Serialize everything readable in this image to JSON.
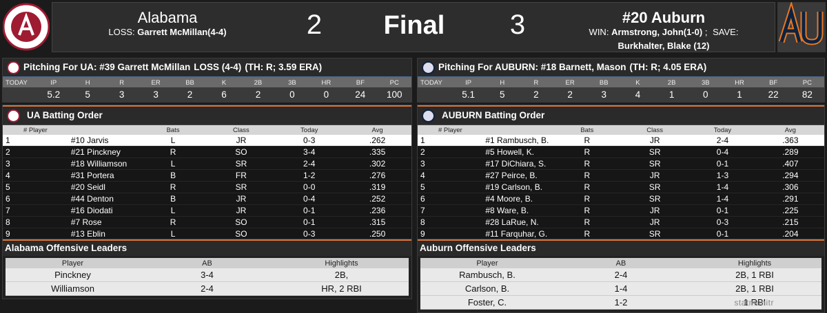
{
  "header": {
    "home_team": "Alabama",
    "loss_label": "LOSS:",
    "loss_pitcher": "Garrett McMillan(4-4)",
    "home_score": 2,
    "status": "Final",
    "away_score": 3,
    "away_team": "#20 Auburn",
    "win_label": "WIN:",
    "win_pitcher": "Armstrong, John(1-0)",
    "separator": ";",
    "save_label": "SAVE:",
    "save_pitcher": "Burkhalter, Blake (12)"
  },
  "panels": [
    {
      "pitching": {
        "title": "Pitching For UA: #39 Garrett McMillan",
        "decision": "LOSS (4-4)",
        "info": "(TH: R; 3.59 ERA)",
        "label": "TODAY",
        "columns": [
          "IP",
          "H",
          "R",
          "ER",
          "BB",
          "K",
          "2B",
          "3B",
          "HR",
          "BF",
          "PC"
        ],
        "values": [
          5.2,
          5,
          3,
          3,
          2,
          6,
          2,
          0,
          0,
          24,
          100
        ]
      },
      "batting": {
        "title": "UA Batting Order",
        "columns": [
          "# Player",
          "Bats",
          "Class",
          "Today",
          "Avg"
        ],
        "rows": [
          [
            1,
            "#10 Jarvis",
            "L",
            "JR",
            "0-3",
            ".262"
          ],
          [
            2,
            "#21 Pinckney",
            "R",
            "SO",
            "3-4",
            ".335"
          ],
          [
            3,
            "#18 Williamson",
            "L",
            "SR",
            "2-4",
            ".302"
          ],
          [
            4,
            "#31 Portera",
            "B",
            "FR",
            "1-2",
            ".276"
          ],
          [
            5,
            "#20 Seidl",
            "R",
            "SR",
            "0-0",
            ".319"
          ],
          [
            6,
            "#44 Denton",
            "B",
            "JR",
            "0-4",
            ".252"
          ],
          [
            7,
            "#16 Diodati",
            "L",
            "JR",
            "0-1",
            ".236"
          ],
          [
            8,
            "#7 Rose",
            "R",
            "SO",
            "0-1",
            ".315"
          ],
          [
            9,
            "#13 Eblin",
            "L",
            "SO",
            "0-3",
            ".250"
          ]
        ]
      },
      "leaders": {
        "title": "Alabama Offensive Leaders",
        "columns": [
          "Player",
          "AB",
          "Highlights"
        ],
        "rows": [
          [
            "Pinckney",
            "3-4",
            "2B,"
          ],
          [
            "Williamson",
            "2-4",
            "HR, 2 RBI"
          ]
        ]
      }
    },
    {
      "pitching": {
        "title": "Pitching For AUBURN: #18 Barnett, Mason",
        "info": "(TH: R; 4.05 ERA)",
        "label": "TODAY",
        "columns": [
          "IP",
          "H",
          "R",
          "ER",
          "BB",
          "K",
          "2B",
          "3B",
          "HR",
          "BF",
          "PC"
        ],
        "values": [
          5.1,
          5,
          2,
          2,
          3,
          4,
          1,
          0,
          1,
          22,
          82
        ]
      },
      "batting": {
        "title": "AUBURN Batting Order",
        "columns": [
          "# Player",
          "Bats",
          "Class",
          "Today",
          "Avg"
        ],
        "rows": [
          [
            1,
            "#1 Rambusch, B.",
            "R",
            "JR",
            "2-4",
            ".363"
          ],
          [
            2,
            "#5 Howell, K.",
            "R",
            "SR",
            "0-4",
            ".289"
          ],
          [
            3,
            "#17 DiChiara, S.",
            "R",
            "SR",
            "0-1",
            ".407"
          ],
          [
            4,
            "#27 Peirce, B.",
            "R",
            "JR",
            "1-3",
            ".294"
          ],
          [
            5,
            "#19 Carlson, B.",
            "R",
            "SR",
            "1-4",
            ".306"
          ],
          [
            6,
            "#4 Moore, B.",
            "R",
            "SR",
            "1-4",
            ".291"
          ],
          [
            7,
            "#8 Ware, B.",
            "R",
            "JR",
            "0-1",
            ".225"
          ],
          [
            8,
            "#28 LaRue, N.",
            "R",
            "JR",
            "0-3",
            ".215"
          ],
          [
            9,
            "#11 Farquhar, G.",
            "R",
            "SR",
            "0-1",
            ".204"
          ]
        ]
      },
      "leaders": {
        "title": "Auburn Offensive Leaders",
        "columns": [
          "Player",
          "AB",
          "Highlights"
        ],
        "rows": [
          [
            "Rambusch, B.",
            "2-4",
            "2B, 1 RBI"
          ],
          [
            "Carlson, B.",
            "1-4",
            "2B, 1 RBI"
          ],
          [
            "Foster, C.",
            "1-2",
            "1 RBI"
          ]
        ]
      }
    }
  ],
  "watermark": "statmonitr"
}
